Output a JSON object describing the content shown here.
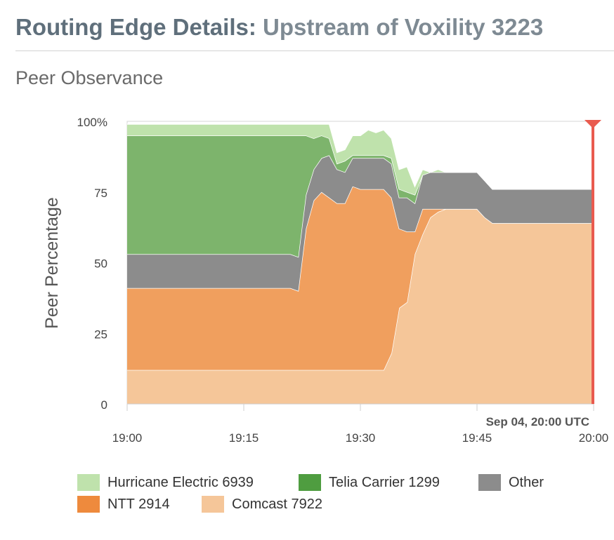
{
  "header": {
    "title": "Routing Edge Details:",
    "subtitle": "Upstream of Voxility 3223"
  },
  "section_title": "Peer Observance",
  "chart_data": {
    "type": "area",
    "stacked": true,
    "ylabel": "Peer Percentage",
    "ylim": [
      0,
      100
    ],
    "yticks": [
      "0",
      "25",
      "50",
      "75",
      "100%"
    ],
    "xlim": [
      "19:00",
      "20:00"
    ],
    "xticks": [
      "19:00",
      "19:15",
      "19:30",
      "19:45",
      "20:00"
    ],
    "x": [
      "19:00",
      "19:21",
      "19:22",
      "19:23",
      "19:24",
      "19:25",
      "19:26",
      "19:27",
      "19:28",
      "19:29",
      "19:30",
      "19:31",
      "19:32",
      "19:33",
      "19:34",
      "19:35",
      "19:36",
      "19:37",
      "19:38",
      "19:39",
      "19:40",
      "19:41",
      "19:42",
      "19:43",
      "19:44",
      "19:45",
      "19:46",
      "19:47",
      "20:00"
    ],
    "series": [
      {
        "name": "Comcast 7922",
        "color": "#f5c699",
        "values": [
          12,
          12,
          12,
          12,
          12,
          12,
          12,
          12,
          12,
          12,
          12,
          12,
          12,
          12,
          18,
          34,
          36,
          53,
          60,
          66,
          68,
          69,
          69,
          69,
          69,
          69,
          66,
          64,
          64
        ]
      },
      {
        "name": "NTT 2914",
        "color": "#f09f5e",
        "values": [
          29,
          29,
          28,
          50,
          60,
          63,
          61,
          59,
          59,
          65,
          64,
          64,
          64,
          64,
          55,
          28,
          25,
          8,
          9,
          3,
          1,
          0,
          0,
          0,
          0,
          0,
          0,
          0,
          0
        ]
      },
      {
        "name": "Other",
        "color": "#8c8c8c",
        "values": [
          12,
          12,
          12,
          12,
          11,
          12,
          15,
          12,
          11,
          10,
          11,
          11,
          11,
          11,
          12,
          11,
          12,
          10,
          12,
          13,
          13,
          13,
          13,
          13,
          13,
          13,
          13,
          12,
          12
        ]
      },
      {
        "name": "Telia Carrier 1299",
        "color": "#7db46c",
        "values": [
          42,
          42,
          43,
          21,
          11,
          8,
          6,
          2,
          4,
          1,
          1,
          1,
          1,
          1,
          2,
          3,
          2,
          3,
          0,
          0,
          0,
          0,
          0,
          0,
          0,
          0,
          0,
          0,
          0
        ]
      },
      {
        "name": "Hurricane Electric 6939",
        "color": "#bfe2ac",
        "values": [
          4,
          4,
          4,
          4,
          5,
          4,
          5,
          4,
          4,
          7,
          7,
          9,
          8,
          9,
          7,
          7,
          9,
          3,
          2,
          0,
          1,
          0,
          0,
          0,
          0,
          0,
          0,
          0,
          0
        ]
      }
    ],
    "marker": {
      "label": "Sep 04, 20:00 UTC",
      "x": "20:00",
      "color": "#e95b4f"
    },
    "grid": true
  },
  "legend": [
    {
      "label": "Hurricane Electric 6939",
      "color": "#bfe2ac"
    },
    {
      "label": "Telia Carrier 1299",
      "color": "#4f9d40"
    },
    {
      "label": "Other",
      "color": "#8c8c8c"
    },
    {
      "label": "NTT 2914",
      "color": "#ee8a3d"
    },
    {
      "label": "Comcast 7922",
      "color": "#f5c699"
    }
  ]
}
